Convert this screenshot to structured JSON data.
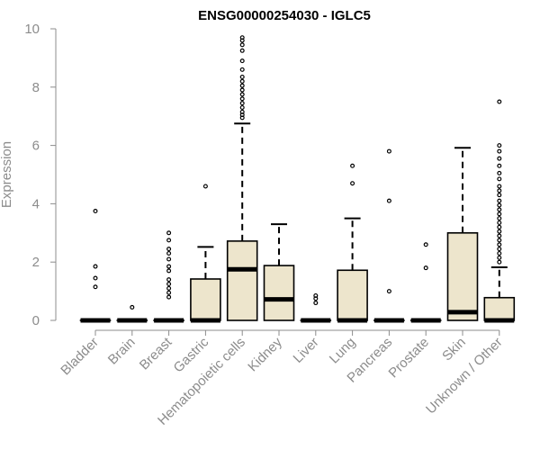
{
  "chart_data": {
    "type": "boxplot",
    "title": "ENSG00000254030 - IGLC5",
    "xlabel": "",
    "ylabel": "Expression",
    "ylim": [
      0,
      10
    ],
    "yticks": [
      0,
      2,
      4,
      6,
      8,
      10
    ],
    "colors": {
      "box_fill": "#ede5cc",
      "box_stroke": "#000000",
      "axis": "#8c8c8c",
      "title": "#000000"
    },
    "categories": [
      "Bladder",
      "Brain",
      "Breast",
      "Gastric",
      "Hematopoietic cells",
      "Kidney",
      "Liver",
      "Lung",
      "Pancreas",
      "Prostate",
      "Skin",
      "Unknown / Other"
    ],
    "boxes": [
      {
        "category": "Bladder",
        "q1": 0,
        "median": 0,
        "q3": 0,
        "whisker_low": 0,
        "whisker_high": 0,
        "outliers": [
          3.75,
          1.85,
          1.45,
          1.15
        ]
      },
      {
        "category": "Brain",
        "q1": 0,
        "median": 0,
        "q3": 0,
        "whisker_low": 0,
        "whisker_high": 0,
        "outliers": [
          0.45
        ]
      },
      {
        "category": "Breast",
        "q1": 0,
        "median": 0,
        "q3": 0,
        "whisker_low": 0,
        "whisker_high": 0,
        "outliers": [
          3.0,
          2.75,
          2.45,
          2.3,
          2.1,
          1.85,
          1.7,
          1.4,
          1.25,
          1.1,
          0.95,
          0.8
        ]
      },
      {
        "category": "Gastric",
        "q1": 0,
        "median": 0,
        "q3": 1.42,
        "whisker_low": 0,
        "whisker_high": 2.52,
        "outliers": [
          4.6
        ]
      },
      {
        "category": "Hematopoietic cells",
        "q1": 0,
        "median": 1.75,
        "q3": 2.72,
        "whisker_low": 0,
        "whisker_high": 6.75,
        "outliers": [
          9.7,
          9.6,
          9.45,
          9.25,
          8.9,
          8.6,
          8.35,
          8.2,
          8.05,
          7.9,
          7.75,
          7.6,
          7.45,
          7.3,
          7.15,
          7.05,
          6.95
        ]
      },
      {
        "category": "Kidney",
        "q1": 0,
        "median": 0.72,
        "q3": 1.88,
        "whisker_low": 0,
        "whisker_high": 3.3,
        "outliers": []
      },
      {
        "category": "Liver",
        "q1": 0,
        "median": 0,
        "q3": 0,
        "whisker_low": 0,
        "whisker_high": 0,
        "outliers": [
          0.85,
          0.75,
          0.6
        ]
      },
      {
        "category": "Lung",
        "q1": 0,
        "median": 0,
        "q3": 1.72,
        "whisker_low": 0,
        "whisker_high": 3.5,
        "outliers": [
          5.3,
          4.7
        ]
      },
      {
        "category": "Pancreas",
        "q1": 0,
        "median": 0,
        "q3": 0,
        "whisker_low": 0,
        "whisker_high": 0,
        "outliers": [
          5.8,
          4.1,
          1.0
        ]
      },
      {
        "category": "Prostate",
        "q1": 0,
        "median": 0,
        "q3": 0,
        "whisker_low": 0,
        "whisker_high": 0,
        "outliers": [
          2.6,
          1.8
        ]
      },
      {
        "category": "Skin",
        "q1": 0,
        "median": 0.28,
        "q3": 3.0,
        "whisker_low": 0,
        "whisker_high": 5.92,
        "outliers": []
      },
      {
        "category": "Unknown / Other",
        "q1": 0,
        "median": 0,
        "q3": 0.78,
        "whisker_low": 0,
        "whisker_high": 1.82,
        "outliers": [
          7.5,
          6.0,
          5.8,
          5.55,
          5.3,
          5.05,
          4.85,
          4.6,
          4.45,
          4.3,
          4.1,
          3.95,
          3.8,
          3.65,
          3.5,
          3.35,
          3.2,
          3.05,
          2.9,
          2.75,
          2.6,
          2.45,
          2.3,
          2.15,
          2.0
        ]
      }
    ]
  }
}
